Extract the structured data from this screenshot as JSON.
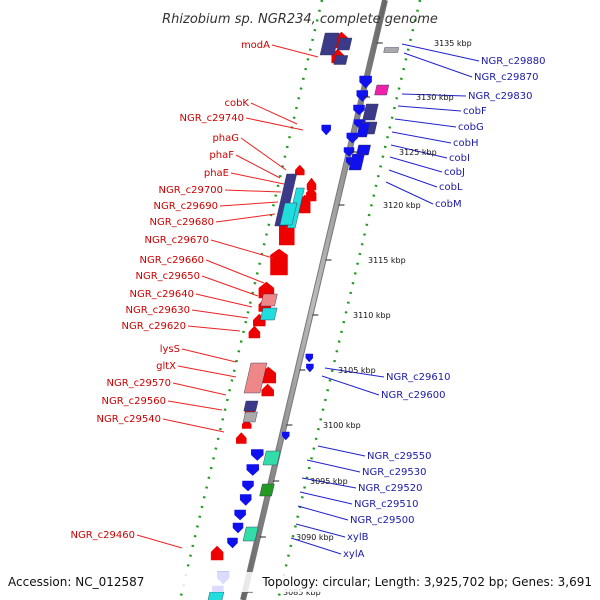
{
  "title": "Rhizobium sp. NGR234, complete genome",
  "footer": {
    "accession": "Accession: NC_012587",
    "topology": "Topology: circular; Length: 3,925,702 bp; Genes: 3,691"
  },
  "left_labels": [
    "modA",
    "cobK",
    "NGR_c29740",
    "phaG",
    "phaF",
    "phaE",
    "NGR_c29700",
    "NGR_c29690",
    "NGR_c29680",
    "NGR_c29670",
    "NGR_c29660",
    "NGR_c29650",
    "NGR_c29640",
    "NGR_c29630",
    "NGR_c29620",
    "lysS",
    "gltX",
    "NGR_c29570",
    "NGR_c29560",
    "NGR_c29540",
    "NGR_c29460"
  ],
  "right_labels": [
    "NGR_c29880",
    "NGR_c29870",
    "NGR_c29830",
    "cobF",
    "cobG",
    "cobH",
    "cobI",
    "cobJ",
    "cobL",
    "cobM",
    "NGR_c29610",
    "NGR_c29600",
    "NGR_c29550",
    "NGR_c29530",
    "NGR_c29520",
    "NGR_c29510",
    "NGR_c29500",
    "xylB",
    "xylA"
  ],
  "ticks": [
    "3135 kbp",
    "3130 kbp",
    "3125 kbp",
    "3120 kbp",
    "3115 kbp",
    "3110 kbp",
    "3105 kbp",
    "3100 kbp",
    "3095 kbp",
    "3090 kbp",
    "3085 kbp"
  ],
  "colors": {
    "forward": "#ee0000",
    "reverse": "#1010ee",
    "backbone": "#888888",
    "tick_dots": "#229922",
    "cog_navy": "#3a3a88",
    "cog_cyan": "#22dddd",
    "cog_pink": "#ee8888",
    "cog_gray": "#aaaaaa",
    "cog_magenta": "#ee22aa",
    "cog_green": "#229922",
    "cog_teal": "#33ddaa"
  }
}
